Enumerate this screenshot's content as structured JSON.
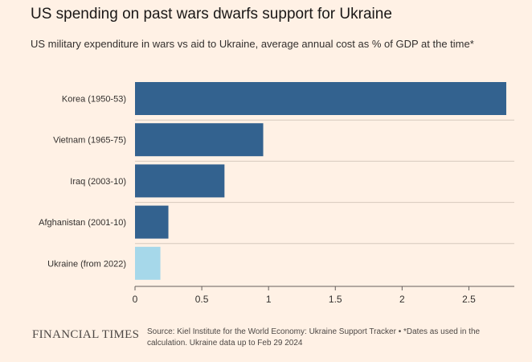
{
  "title": "US spending on past wars dwarfs support for Ukraine",
  "subtitle": "US military expenditure in wars vs aid to Ukraine, average annual cost as % of GDP at the time*",
  "chart_data": {
    "type": "bar",
    "orientation": "horizontal",
    "categories": [
      "Korea (1950-53)",
      "Vietnam (1965-75)",
      "Iraq (2003-10)",
      "Afghanistan (2001-10)",
      "Ukraine (from 2022)"
    ],
    "values": [
      2.78,
      0.96,
      0.67,
      0.25,
      0.19
    ],
    "colors": [
      "#33628f",
      "#33628f",
      "#33628f",
      "#33628f",
      "#a6d8ea"
    ],
    "xlim": [
      0,
      2.8
    ],
    "xticks": [
      0,
      0.5,
      1,
      1.5,
      2,
      2.5
    ],
    "xtick_labels": [
      "0",
      "0.5",
      "1",
      "1.5",
      "2",
      "2.5"
    ],
    "grid": "horizontal separators between categories",
    "xlabel": "",
    "ylabel": ""
  },
  "footer": {
    "logo": "FINANCIAL TIMES",
    "source": "Source: Kiel Institute for the World Economy: Ukraine Support Tracker • *Dates as used in the calculation. Ukraine data up to Feb 29 2024"
  },
  "colors": {
    "background": "#fff1e5",
    "bar": "#33628f",
    "highlight_bar": "#a6d8ea"
  }
}
